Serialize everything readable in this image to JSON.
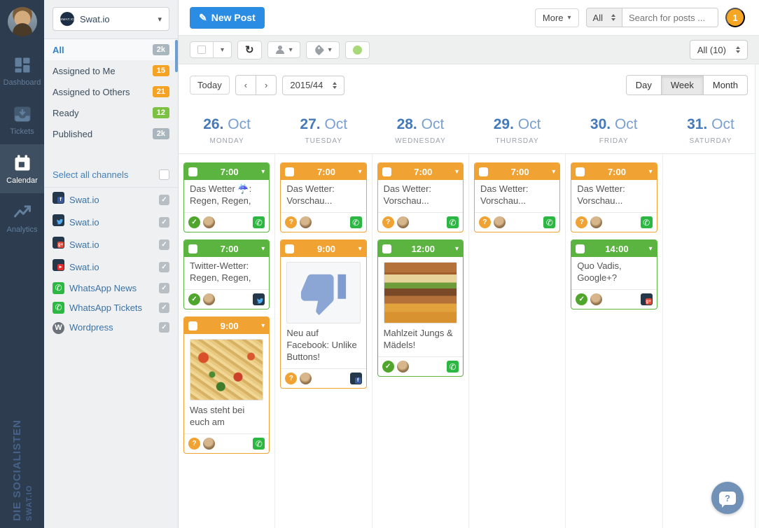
{
  "workspace": {
    "name": "Swat.io"
  },
  "nav": {
    "items": [
      {
        "id": "dashboard",
        "label": "Dashboard",
        "active": false
      },
      {
        "id": "tickets",
        "label": "Tickets",
        "active": false
      },
      {
        "id": "calendar",
        "label": "Calendar",
        "active": true
      },
      {
        "id": "analytics",
        "label": "Analytics",
        "active": false
      }
    ],
    "brand_line1": "DIE SOCIALISTEN",
    "brand_line2": "SWAT.IO"
  },
  "sidebar": {
    "filters": [
      {
        "label": "All",
        "count": "2k",
        "color": "gray",
        "active": true
      },
      {
        "label": "Assigned to Me",
        "count": "15",
        "color": "orange",
        "active": false
      },
      {
        "label": "Assigned to Others",
        "count": "21",
        "color": "orange",
        "active": false
      },
      {
        "label": "Ready",
        "count": "12",
        "color": "green",
        "active": false
      },
      {
        "label": "Published",
        "count": "2k",
        "color": "gray",
        "active": false
      }
    ],
    "select_all_label": "Select all channels",
    "channels": [
      {
        "label": "Swat.io",
        "network": "facebook",
        "checked": true
      },
      {
        "label": "Swat.io",
        "network": "twitter",
        "checked": true
      },
      {
        "label": "Swat.io",
        "network": "googleplus",
        "checked": true
      },
      {
        "label": "Swat.io",
        "network": "youtube",
        "checked": true
      },
      {
        "label": "WhatsApp News",
        "network": "whatsapp",
        "checked": true
      },
      {
        "label": "WhatsApp Tickets",
        "network": "whatsapp",
        "checked": true
      },
      {
        "label": "Wordpress",
        "network": "wordpress",
        "checked": true
      }
    ]
  },
  "header": {
    "new_post": "New Post",
    "more": "More",
    "search_filter": "All",
    "search_placeholder": "Search for posts ...",
    "notification_count": "1"
  },
  "toolbar": {
    "channel_filter": "All (10)"
  },
  "calendar": {
    "today": "Today",
    "week": "2015/44",
    "views": [
      {
        "label": "Day",
        "active": false
      },
      {
        "label": "Week",
        "active": true
      },
      {
        "label": "Month",
        "active": false
      }
    ],
    "days": [
      {
        "date": "26.",
        "month": "Oct",
        "weekday": "MONDAY",
        "posts": [
          {
            "time": "7:00",
            "status": "ready",
            "text": "Das Wetter ☔: Regen, Regen,",
            "approval": "approved",
            "channel": "whatsapp"
          },
          {
            "time": "7:00",
            "status": "ready",
            "text": "Twitter-Wetter: Regen, Regen,",
            "approval": "approved",
            "channel": "twitter"
          },
          {
            "time": "9:00",
            "status": "pending",
            "text": "Was steht bei euch am",
            "approval": "question",
            "channel": "whatsapp",
            "image": "noodles"
          }
        ]
      },
      {
        "date": "27.",
        "month": "Oct",
        "weekday": "TUESDAY",
        "posts": [
          {
            "time": "7:00",
            "status": "pending",
            "text": "Das Wetter: Vorschau...",
            "approval": "question",
            "channel": "whatsapp"
          },
          {
            "time": "9:00",
            "status": "pending",
            "text": "Neu auf Facebook: Unlike Buttons!",
            "approval": "question",
            "channel": "facebook",
            "image": "thumbsdown"
          }
        ]
      },
      {
        "date": "28.",
        "month": "Oct",
        "weekday": "WEDNESDAY",
        "posts": [
          {
            "time": "7:00",
            "status": "pending",
            "text": "Das Wetter: Vorschau...",
            "approval": "question",
            "channel": "whatsapp"
          },
          {
            "time": "12:00",
            "status": "ready",
            "text": "Mahlzeit Jungs & Mädels!",
            "approval": "approved",
            "channel": "whatsapp",
            "image": "burger"
          }
        ]
      },
      {
        "date": "29.",
        "month": "Oct",
        "weekday": "THURSDAY",
        "posts": [
          {
            "time": "7:00",
            "status": "pending",
            "text": "Das Wetter: Vorschau...",
            "approval": "question",
            "channel": "whatsapp"
          }
        ]
      },
      {
        "date": "30.",
        "month": "Oct",
        "weekday": "FRIDAY",
        "posts": [
          {
            "time": "7:00",
            "status": "pending",
            "text": "Das Wetter: Vorschau...",
            "approval": "question",
            "channel": "whatsapp"
          },
          {
            "time": "14:00",
            "status": "ready",
            "text": "Quo Vadis, Google+?",
            "approval": "approved",
            "channel": "googleplus"
          }
        ]
      },
      {
        "date": "31.",
        "month": "Oct",
        "weekday": "SATURDAY",
        "posts": []
      }
    ]
  },
  "icons": {
    "caret": "▾",
    "check": "✓",
    "question": "?",
    "refresh": "↻",
    "pencil": "✎",
    "prev": "‹",
    "next": "›",
    "phone": "✆"
  },
  "colors": {
    "ready_green": "#5bb340",
    "pending_orange": "#f0a232",
    "primary_blue": "#2b8ce4",
    "badge_orange": "#f5a325",
    "badge_green": "#7cc142",
    "badge_gray": "#aab6bd"
  },
  "help": {
    "label": "?"
  }
}
